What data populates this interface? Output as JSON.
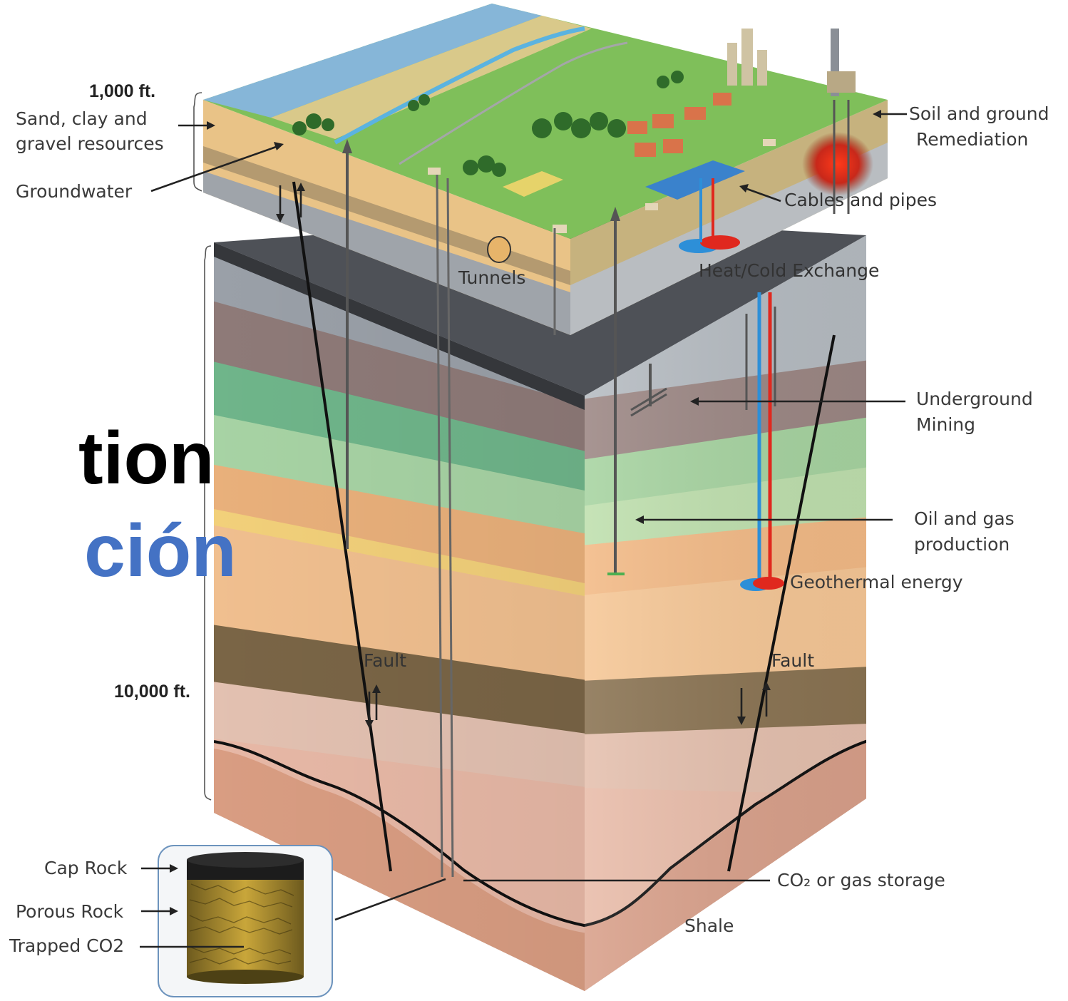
{
  "title_fragments": {
    "line1": "tion",
    "line2": "ción"
  },
  "depth_labels": {
    "shallow": "1,000 ft.",
    "deep": "10,000 ft."
  },
  "left_labels": {
    "sand_line1": "Sand, clay and",
    "sand_line2": "gravel resources",
    "groundwater": "Groundwater"
  },
  "right_labels": {
    "soil_line1": "Soil and ground",
    "soil_line2": "Remediation",
    "cables": "Cables and pipes",
    "heat": "Heat/Cold Exchange",
    "mining_line1": "Underground",
    "mining_line2": "Mining",
    "oil_line1": "Oil and gas",
    "oil_line2": "production",
    "geothermal": "Geothermal energy",
    "co2_storage": "CO₂ or gas storage",
    "shale": "Shale"
  },
  "inline_labels": {
    "tunnels": "Tunnels",
    "fault_left": "Fault",
    "fault_right": "Fault"
  },
  "inset_labels": {
    "cap_rock": "Cap Rock",
    "porous_rock": "Porous Rock",
    "trapped_co2": "Trapped CO2"
  }
}
